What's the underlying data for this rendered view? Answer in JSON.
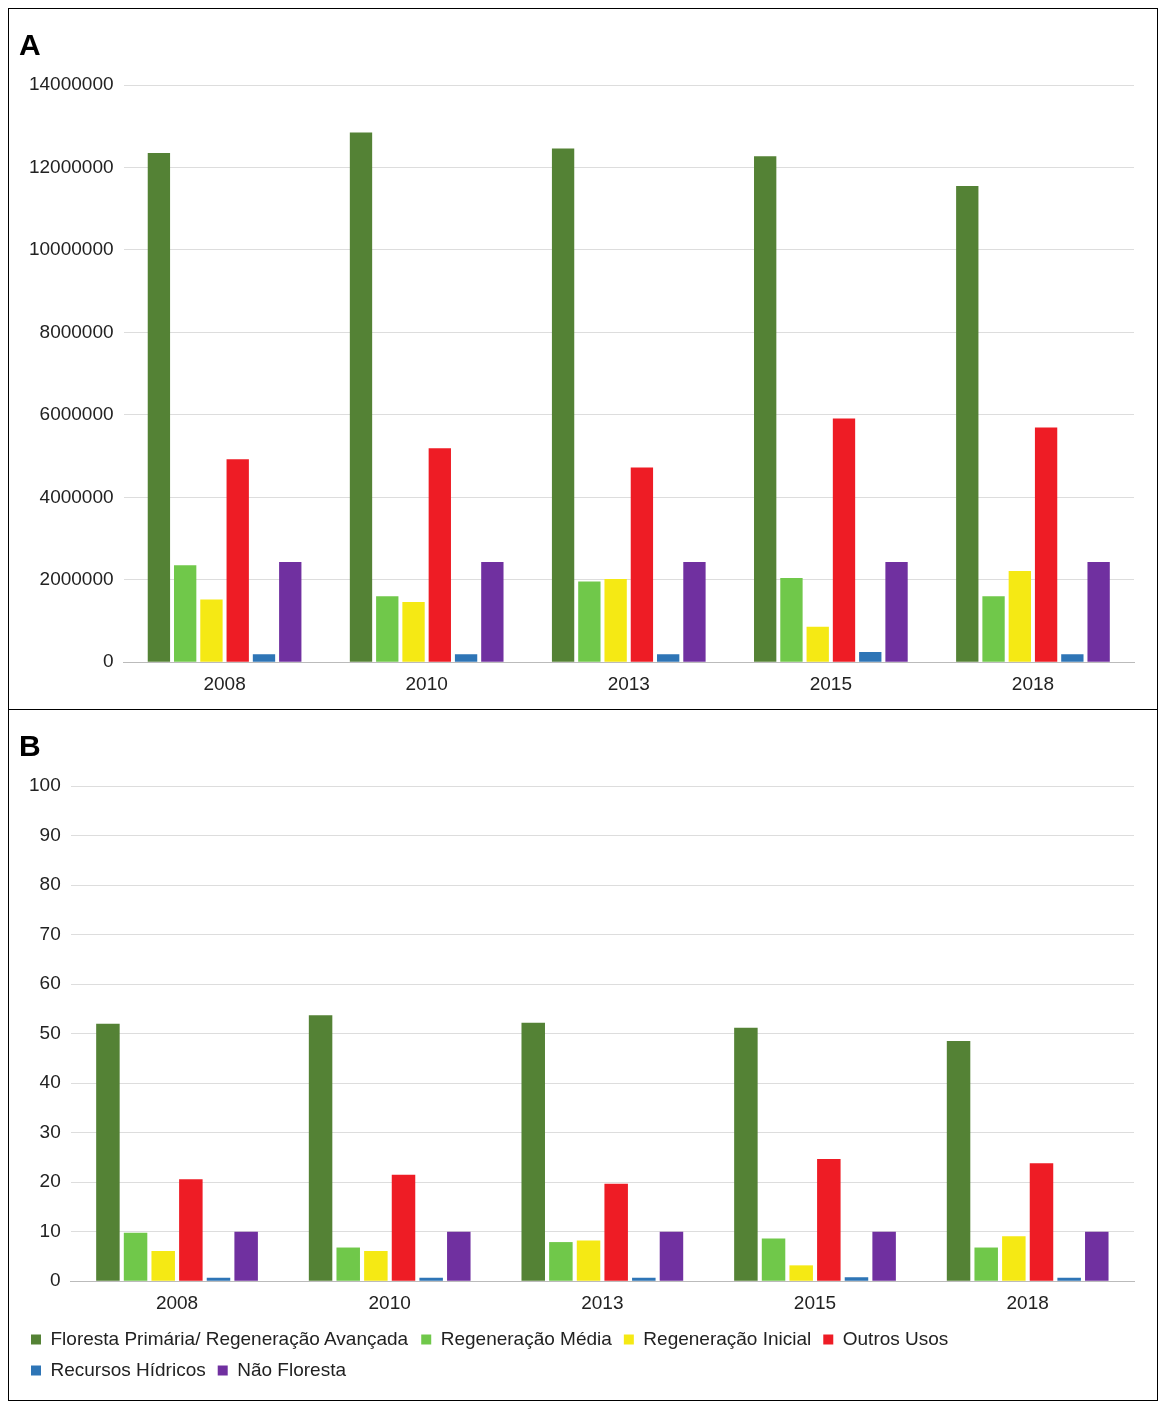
{
  "chart_data": [
    {
      "type": "bar",
      "title": "A",
      "categories": [
        "2008",
        "2010",
        "2013",
        "2015",
        "2018"
      ],
      "ylim": [
        0,
        14000000
      ],
      "yticks": [
        0,
        2000000,
        4000000,
        6000000,
        8000000,
        10000000,
        12000000,
        14000000
      ],
      "grid": "y",
      "legend": false,
      "series": [
        {
          "color": "#548235",
          "values": [
            12350000,
            12850000,
            12460000,
            12270000,
            11550000
          ]
        },
        {
          "color": "#70c84a",
          "values": [
            2350000,
            1600000,
            1960000,
            2040000,
            1600000
          ]
        },
        {
          "color": "#f5e914",
          "values": [
            1520000,
            1460000,
            2020000,
            860000,
            2210000
          ]
        },
        {
          "color": "#ee1c25",
          "values": [
            4920000,
            5190000,
            4720000,
            5910000,
            5690000
          ]
        },
        {
          "color": "#2e75b6",
          "values": [
            190000,
            190000,
            190000,
            250000,
            190000
          ]
        },
        {
          "color": "#7030a0",
          "values": [
            2430000,
            2430000,
            2430000,
            2430000,
            2430000
          ]
        }
      ]
    },
    {
      "type": "bar",
      "title": "B",
      "categories": [
        "2008",
        "2010",
        "2013",
        "2015",
        "2018"
      ],
      "ylim": [
        0,
        100
      ],
      "yticks": [
        0,
        10,
        20,
        30,
        40,
        50,
        60,
        70,
        80,
        90,
        100
      ],
      "grid": "y",
      "legend": "bottom",
      "series": [
        {
          "name": "Floresta Primária/ Regeneração Avançada",
          "color": "#548235",
          "values": [
            52,
            53.7,
            52.2,
            51.2,
            48.5
          ]
        },
        {
          "name": "Regeneração Média",
          "color": "#70c84a",
          "values": [
            9.8,
            6.8,
            7.9,
            8.6,
            6.8
          ]
        },
        {
          "name": "Regeneração Inicial",
          "color": "#f5e914",
          "values": [
            6.1,
            6.1,
            8.2,
            3.2,
            9.1
          ]
        },
        {
          "name": "Outros Usos",
          "color": "#ee1c25",
          "values": [
            20.6,
            21.5,
            19.7,
            24.7,
            23.8
          ]
        },
        {
          "name": "Recursos Hídricos",
          "color": "#2e75b6",
          "values": [
            0.7,
            0.7,
            0.7,
            0.8,
            0.7
          ]
        },
        {
          "name": "Não Floresta",
          "color": "#7030a0",
          "values": [
            10,
            10,
            10,
            10,
            10
          ]
        }
      ]
    }
  ]
}
